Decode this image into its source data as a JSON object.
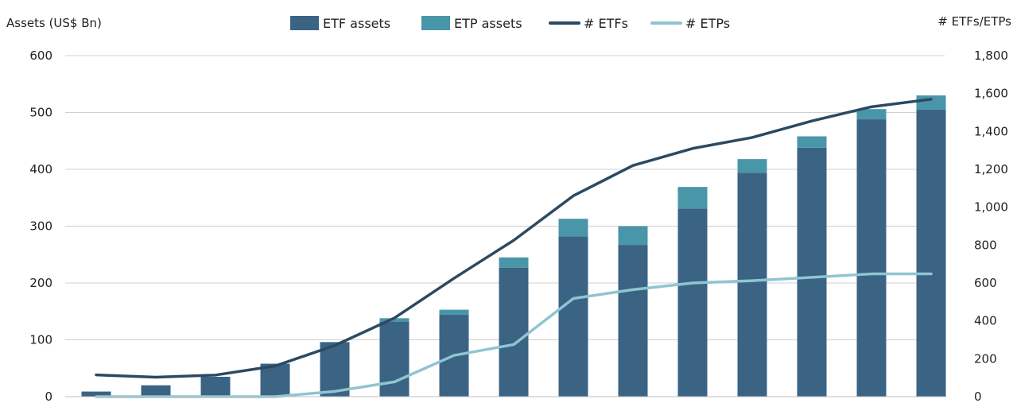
{
  "chart_data": {
    "type": "bar",
    "title": "",
    "ylabel": "Assets (US$ Bn)",
    "y2label": "# ETFs/ETPs",
    "ylim": [
      0,
      600
    ],
    "y2lim": [
      0,
      1800
    ],
    "yticks": [
      0,
      100,
      200,
      300,
      400,
      500,
      600
    ],
    "y2ticks": [
      0,
      200,
      400,
      600,
      800,
      1000,
      1200,
      1400,
      1600,
      1800
    ],
    "ytick_labels": [
      "0",
      "100",
      "200",
      "300",
      "400",
      "500",
      "600"
    ],
    "y2tick_labels": [
      "0",
      "200",
      "400",
      "600",
      "800",
      "1,000",
      "1,200",
      "1,400",
      "1,600",
      "1,800"
    ],
    "grid": true,
    "legend_position": "top",
    "categories": [
      "",
      "",
      "",
      "",
      "",
      "",
      "",
      "",
      "",
      "",
      "",
      "",
      "",
      "",
      ""
    ],
    "series": [
      {
        "name": "ETF assets",
        "kind": "bar",
        "axis": "left",
        "color": "#3b6384",
        "values": [
          9,
          20,
          35,
          58,
          96,
          132,
          144,
          227,
          282,
          267,
          331,
          394,
          438,
          488,
          505
        ]
      },
      {
        "name": "ETP assets",
        "kind": "bar",
        "axis": "left",
        "color": "#4896a8",
        "values": [
          0,
          0,
          0,
          0,
          0,
          6,
          9,
          18,
          31,
          33,
          38,
          24,
          20,
          18,
          25
        ]
      },
      {
        "name": "# ETFs",
        "kind": "line",
        "axis": "right",
        "color": "#2b4a62",
        "values": [
          115,
          103,
          114,
          162,
          270,
          415,
          625,
          825,
          1060,
          1220,
          1310,
          1368,
          1455,
          1530,
          1570
        ]
      },
      {
        "name": "# ETPs",
        "kind": "line",
        "axis": "right",
        "color": "#8fc5d1",
        "values": [
          0,
          0,
          0,
          0,
          28,
          78,
          218,
          275,
          518,
          565,
          600,
          612,
          630,
          648,
          648
        ]
      }
    ]
  }
}
